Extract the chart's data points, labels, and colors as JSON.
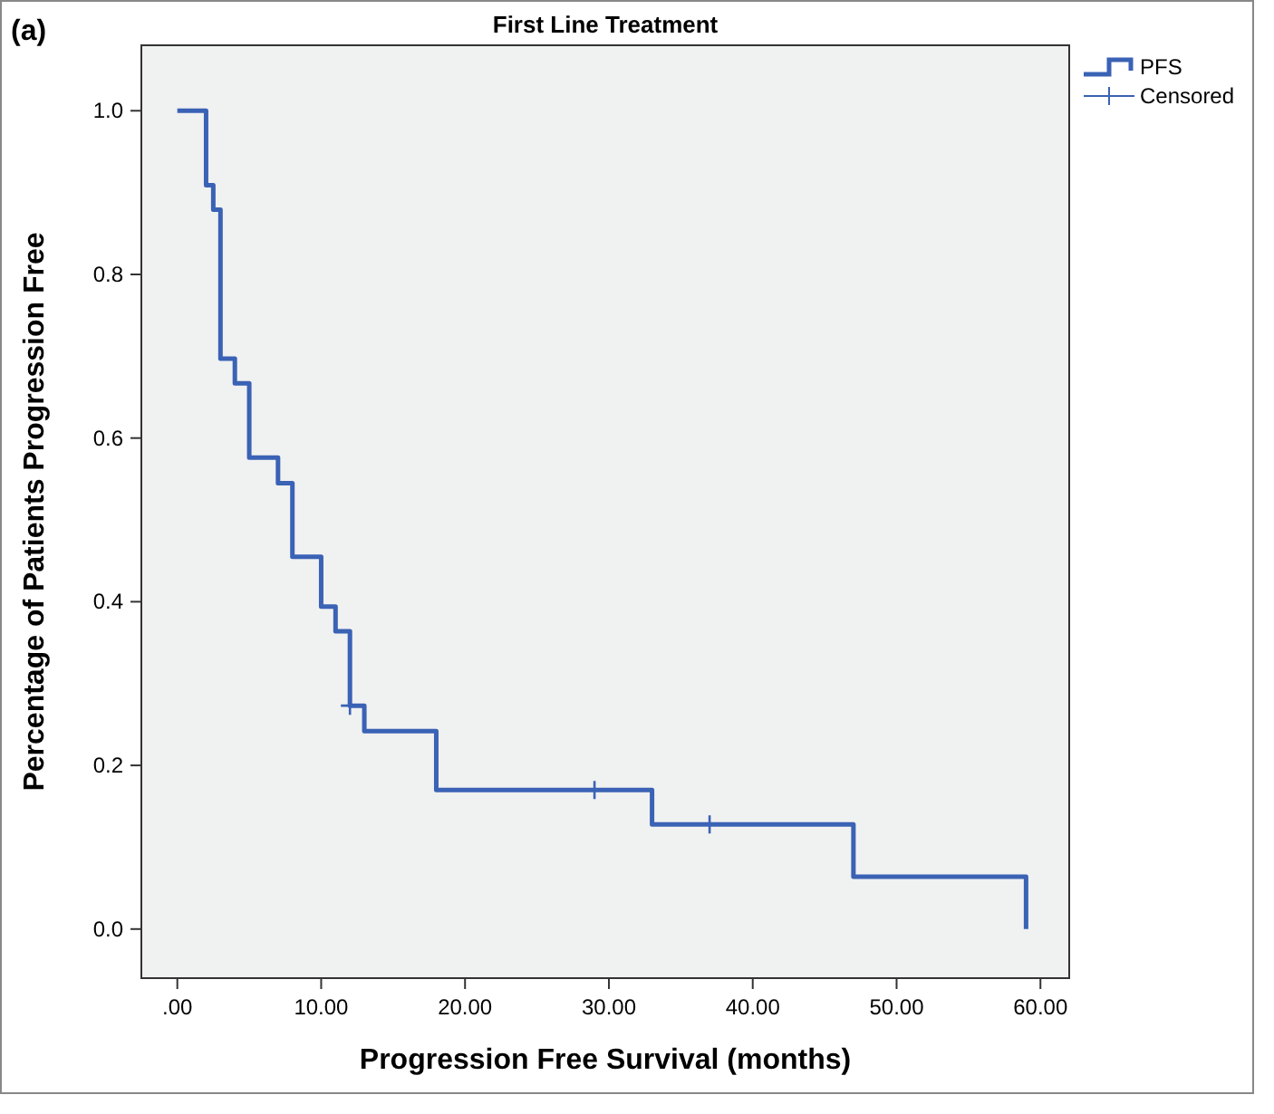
{
  "chart_data": {
    "type": "step",
    "title": "First Line Treatment",
    "xlabel": "Progression Free Survival (months)",
    "ylabel": "Percentage of Patients Progression Free",
    "annotations": [
      "(a)"
    ],
    "xlim": [
      -2.5,
      62
    ],
    "ylim": [
      -0.06,
      1.08
    ],
    "xticks": [
      {
        "value": 0,
        "label": ".00"
      },
      {
        "value": 10,
        "label": "10.00"
      },
      {
        "value": 20,
        "label": "20.00"
      },
      {
        "value": 30,
        "label": "30.00"
      },
      {
        "value": 40,
        "label": "40.00"
      },
      {
        "value": 50,
        "label": "50.00"
      },
      {
        "value": 60,
        "label": "60.00"
      }
    ],
    "yticks": [
      {
        "value": 0,
        "label": "0.0"
      },
      {
        "value": 0.2,
        "label": "0.2"
      },
      {
        "value": 0.4,
        "label": "0.4"
      },
      {
        "value": 0.6,
        "label": "0.6"
      },
      {
        "value": 0.8,
        "label": "0.8"
      },
      {
        "value": 1,
        "label": "1.0"
      }
    ],
    "grid": false,
    "legend": "top right",
    "series": [
      {
        "name": "PFS",
        "color": "#3a62b5",
        "x": [
          0,
          2,
          2.5,
          3,
          4,
          5,
          7,
          8,
          10,
          11,
          12,
          13,
          18,
          33,
          47,
          59
        ],
        "values": [
          1,
          0.909,
          0.879,
          0.697,
          0.667,
          0.576,
          0.545,
          0.455,
          0.394,
          0.364,
          0.273,
          0.242,
          0.17,
          0.128,
          0.064,
          0
        ]
      },
      {
        "name": "Censored",
        "type": "scatter",
        "marker": "cross",
        "color": "#3a62b5",
        "x": [
          12,
          29,
          37
        ],
        "values": [
          0.273,
          0.17,
          0.128
        ]
      }
    ]
  }
}
